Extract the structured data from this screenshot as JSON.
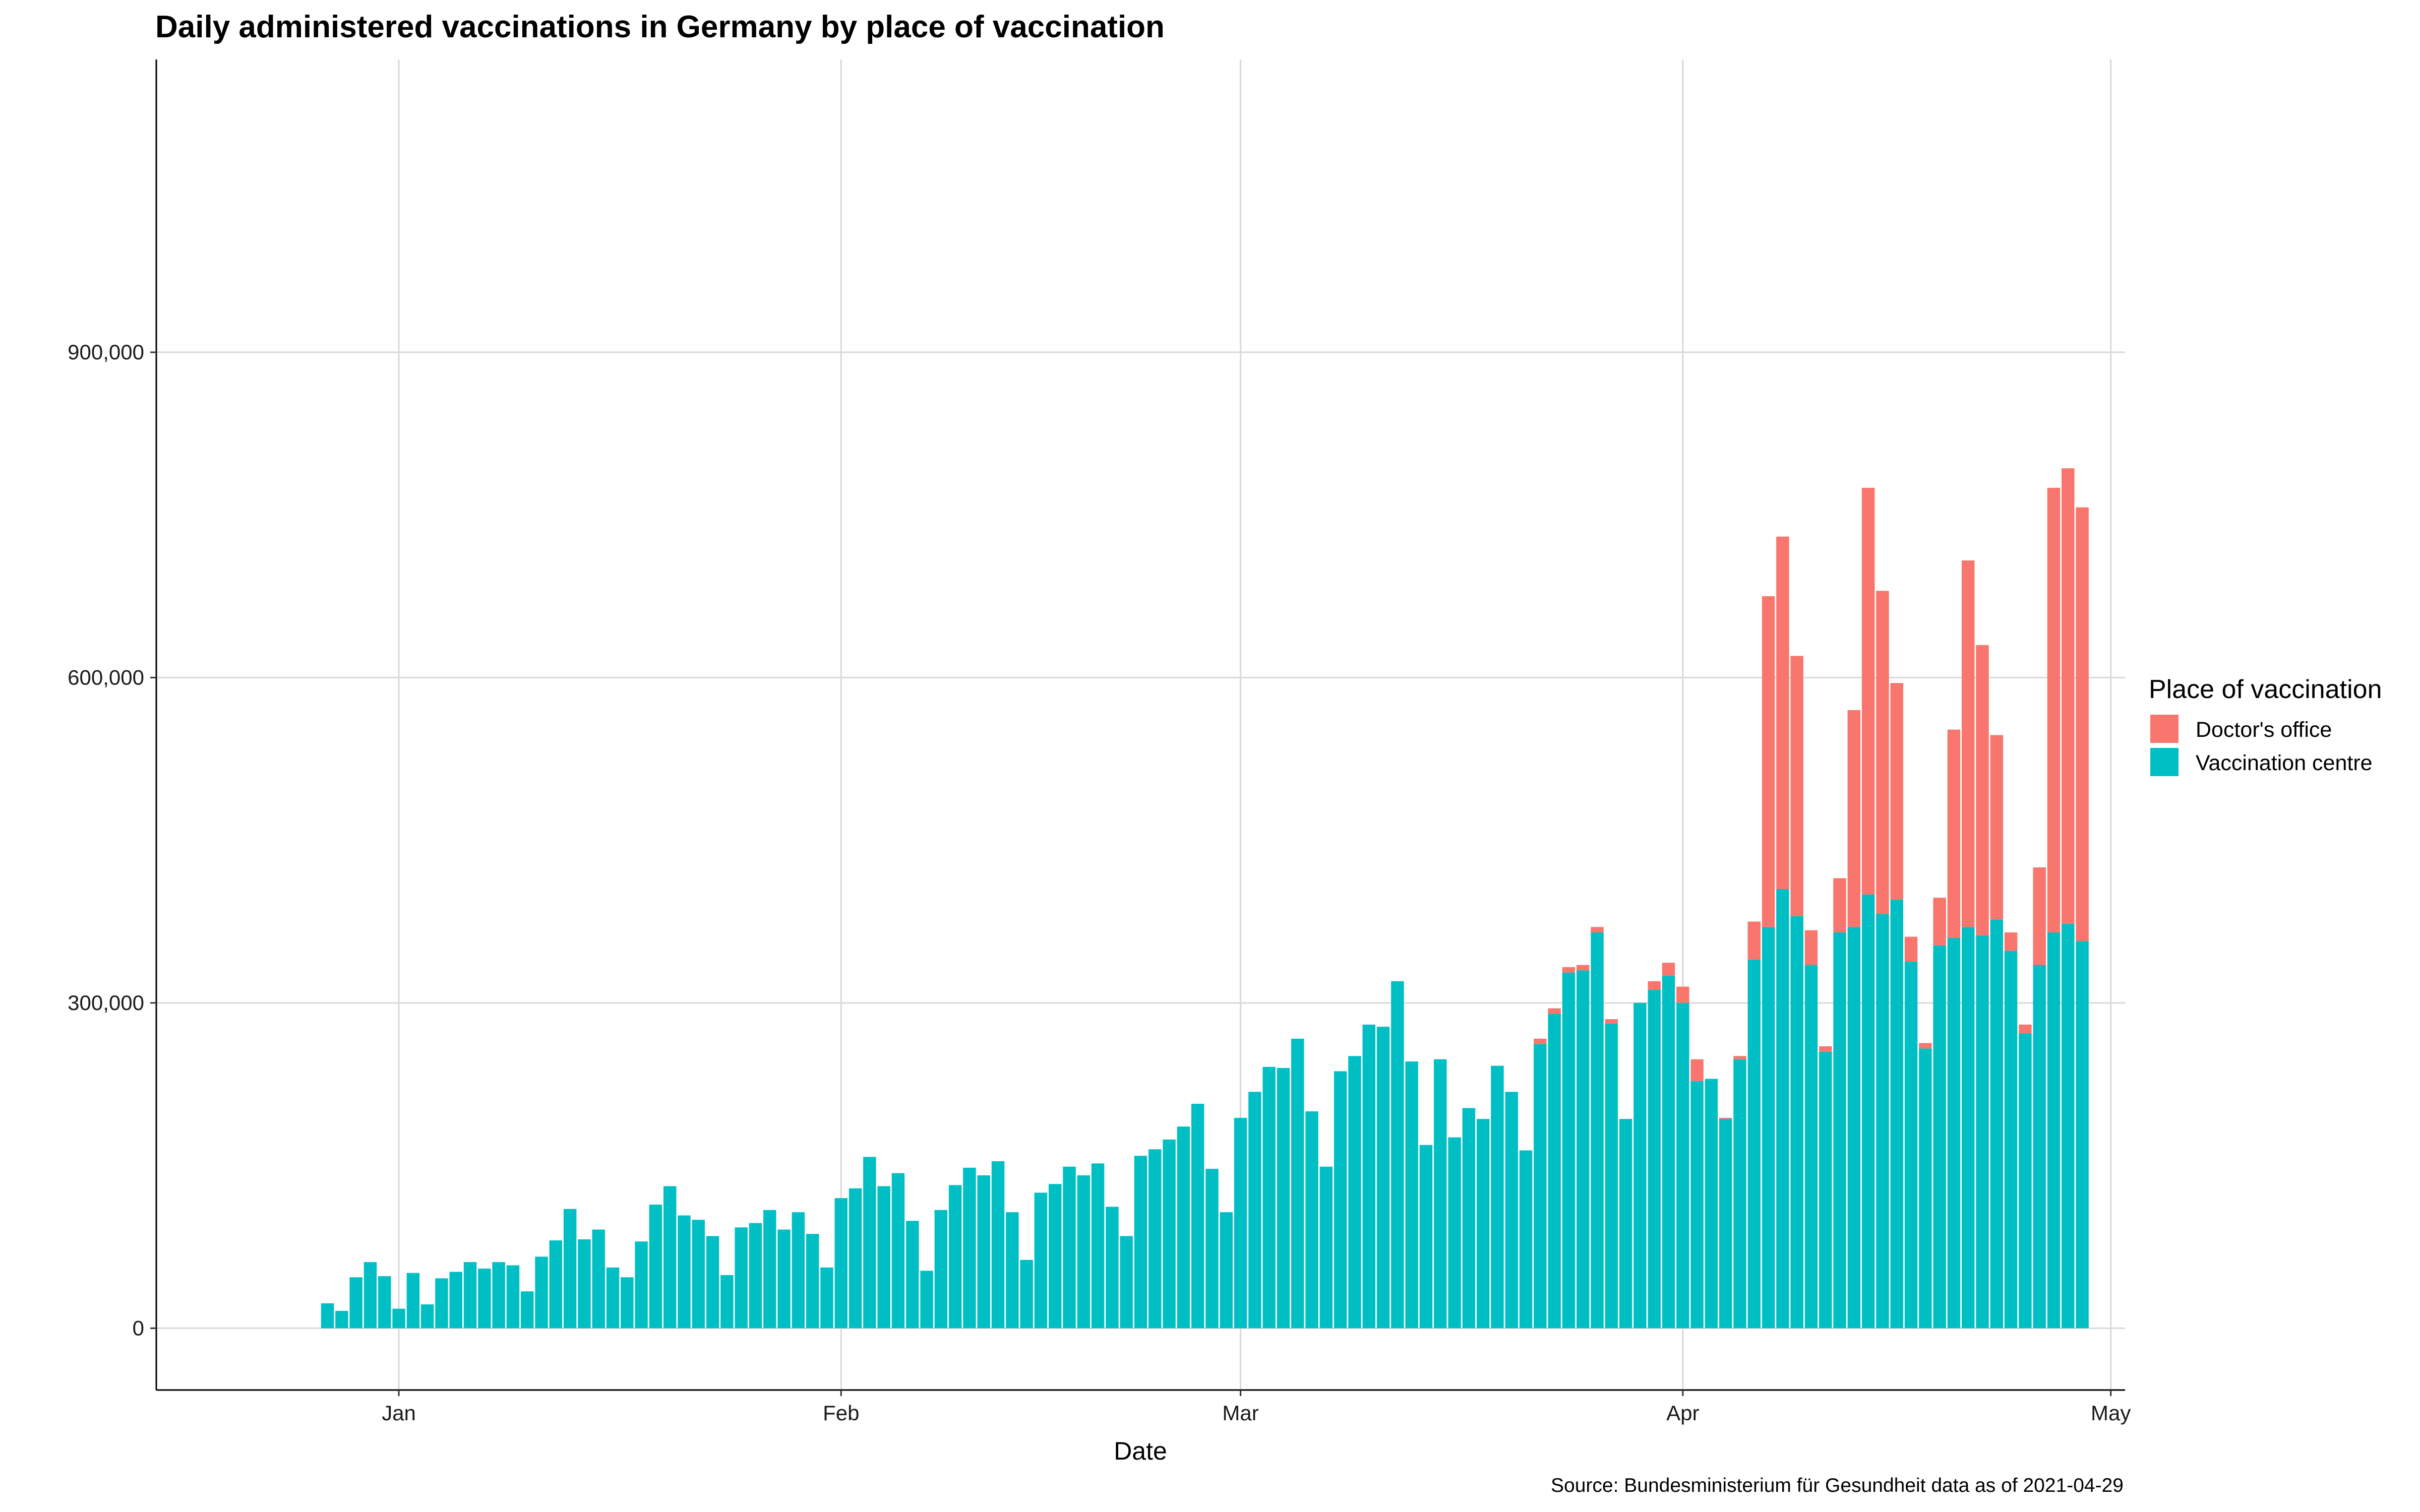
{
  "chart_data": {
    "type": "bar",
    "stacked": true,
    "title": "Daily administered vaccinations in Germany by place of vaccination",
    "xlabel": "Date",
    "ylabel": "",
    "caption": "Source: Bundesministerium für Gesundheit data as of 2021-04-29",
    "x_range": [
      "2020-12-15",
      "2021-05-02"
    ],
    "ylim": [
      -57000,
      1170000
    ],
    "y_ticks": [
      0,
      300000,
      600000,
      900000
    ],
    "y_tick_labels": [
      "0",
      "300,000",
      "600,000",
      "900,000"
    ],
    "x_ticks": [
      "2021-01-01",
      "2021-02-01",
      "2021-03-01",
      "2021-04-01",
      "2021-05-01"
    ],
    "x_tick_labels": [
      "Jan",
      "Feb",
      "Mar",
      "Apr",
      "May"
    ],
    "grid": true,
    "legend": {
      "title": "Place of vaccination",
      "position": "right"
    },
    "start_date": "2020-12-27",
    "series": [
      {
        "name": "Doctor's office",
        "color": "#F8766D",
        "values": [
          0,
          0,
          0,
          0,
          0,
          0,
          0,
          0,
          0,
          0,
          0,
          0,
          0,
          0,
          0,
          0,
          0,
          0,
          0,
          0,
          0,
          0,
          0,
          0,
          0,
          0,
          0,
          0,
          0,
          0,
          0,
          0,
          0,
          0,
          0,
          0,
          0,
          0,
          0,
          0,
          0,
          0,
          0,
          0,
          0,
          0,
          0,
          0,
          0,
          0,
          0,
          0,
          0,
          0,
          0,
          0,
          0,
          0,
          0,
          0,
          0,
          0,
          0,
          0,
          0,
          0,
          0,
          0,
          0,
          0,
          0,
          0,
          0,
          0,
          0,
          0,
          0,
          0,
          0,
          0,
          0,
          0,
          0,
          0,
          0,
          5000,
          5000,
          5000,
          5000,
          5000,
          4000,
          0,
          0,
          8000,
          12000,
          15000,
          20000,
          0,
          1000,
          3000,
          35000,
          305000,
          325000,
          240000,
          32000,
          5000,
          50000,
          200000,
          375000,
          298000,
          200000,
          23000,
          5000,
          44000,
          192000,
          338000,
          268000,
          170000,
          17000,
          8000,
          90000,
          410000,
          420000,
          400000
        ]
      },
      {
        "name": "Vaccination centre",
        "color": "#00BFC4",
        "values": [
          23000,
          16000,
          47000,
          61000,
          48000,
          18000,
          51000,
          22000,
          46000,
          52000,
          61000,
          55000,
          61000,
          58000,
          34000,
          66000,
          81000,
          110000,
          82000,
          91000,
          56000,
          47000,
          80000,
          114000,
          131000,
          104000,
          100000,
          85000,
          49000,
          93000,
          97000,
          109000,
          91000,
          107000,
          87000,
          56000,
          120000,
          129000,
          158000,
          131000,
          143000,
          99000,
          53000,
          109000,
          132000,
          148000,
          141000,
          154000,
          107000,
          63000,
          125000,
          133000,
          149000,
          141000,
          152000,
          112000,
          85000,
          159000,
          165000,
          174000,
          186000,
          207000,
          147000,
          107000,
          194000,
          218000,
          241000,
          240000,
          267000,
          200000,
          149000,
          237000,
          251000,
          280000,
          278000,
          320000,
          246000,
          169000,
          248000,
          176000,
          203000,
          193000,
          242000,
          218000,
          164000,
          262000,
          290000,
          328000,
          330000,
          365000,
          281000,
          193000,
          300000,
          312000,
          325000,
          300000,
          228000,
          230000,
          193000,
          248000,
          340000,
          370000,
          405000,
          380000,
          335000,
          255000,
          365000,
          370000,
          400000,
          382000,
          395000,
          338000,
          258000,
          353000,
          360000,
          370000,
          362000,
          377000,
          348000,
          272000,
          335000,
          365000,
          373000,
          357000
        ]
      }
    ]
  }
}
